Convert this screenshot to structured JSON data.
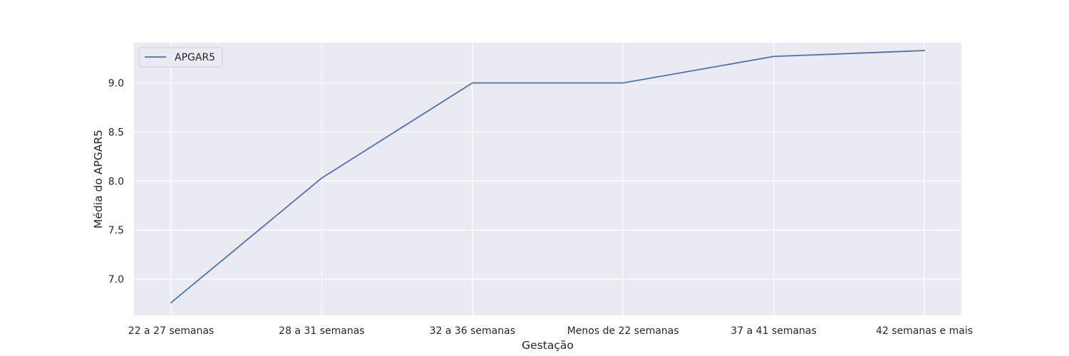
{
  "chart_data": {
    "type": "line",
    "categories": [
      "22 a 27 semanas",
      "28 a 31 semanas",
      "32 a 36 semanas",
      "Menos de 22 semanas",
      "37 a 41 semanas",
      "42 semanas e mais"
    ],
    "series": [
      {
        "name": "APGAR5",
        "values": [
          6.76,
          8.03,
          9.0,
          9.0,
          9.27,
          9.33
        ],
        "color": "#4c72b0"
      }
    ],
    "title": "",
    "xlabel": "Gestação",
    "ylabel": "Média do APGAR5",
    "ylim": [
      6.63,
      9.41
    ],
    "yticks": [
      "7.0",
      "7.5",
      "8.0",
      "8.5",
      "9.0"
    ],
    "grid": true,
    "legend_position": "top-left",
    "background_color": "#eaeaf2",
    "grid_color": "#ffffff"
  }
}
